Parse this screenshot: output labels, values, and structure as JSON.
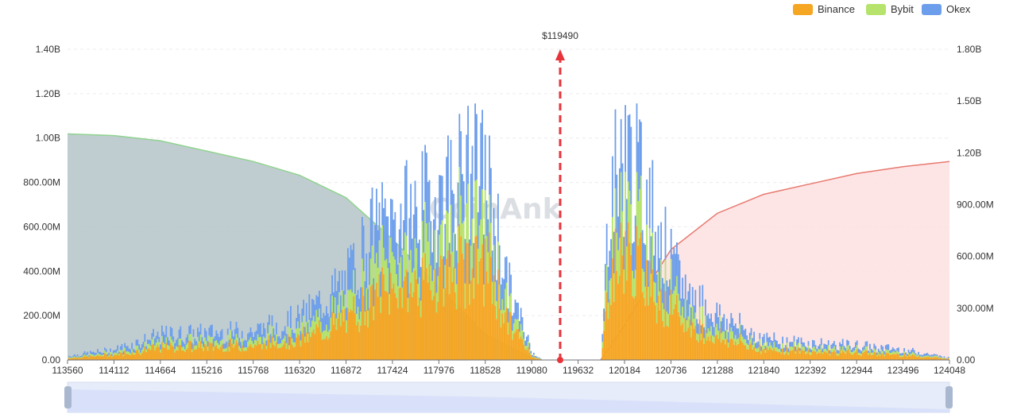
{
  "chart_data": {
    "type": "bar",
    "title": "",
    "current_price_label": "$119490",
    "current_price": 119490,
    "watermark": "CoinAnk",
    "x_ticks": [
      "113560",
      "114112",
      "114664",
      "115216",
      "115768",
      "116320",
      "116872",
      "117424",
      "117976",
      "118528",
      "119080",
      "119632",
      "120184",
      "120736",
      "121288",
      "121840",
      "122392",
      "122944",
      "123496",
      "124048"
    ],
    "xlim": [
      113560,
      124048
    ],
    "y_left_ticks": [
      "0.00",
      "200.00M",
      "400.00M",
      "600.00M",
      "800.00M",
      "1.00B",
      "1.20B",
      "1.40B"
    ],
    "y_left_lim": [
      0,
      1400000000
    ],
    "y_right_ticks": [
      "0.00",
      "300.00M",
      "600.00M",
      "900.00M",
      "1.20B",
      "1.50B",
      "1.80B"
    ],
    "y_right_lim": [
      0,
      1800000000
    ],
    "legend": {
      "position": "top-right"
    },
    "series": [
      {
        "name": "Binance",
        "color": "#f5a623"
      },
      {
        "name": "Bybit",
        "color": "#b5e36b"
      },
      {
        "name": "Okex",
        "color": "#6d9eeb"
      }
    ],
    "bar_profile": {
      "x": [
        113560,
        114112,
        114664,
        115216,
        115768,
        116320,
        116872,
        117150,
        117424,
        117700,
        117976,
        118250,
        118528,
        118800,
        119080,
        119200,
        119632,
        119900,
        120000,
        120184,
        120450,
        120736,
        121000,
        121288,
        121840,
        122392,
        122944,
        123496,
        124048
      ],
      "totals": [
        20000000,
        50000000,
        120000000,
        130000000,
        140000000,
        200000000,
        380000000,
        600000000,
        680000000,
        720000000,
        800000000,
        900000000,
        900000000,
        350000000,
        40000000,
        0,
        0,
        0,
        850000000,
        1000000000,
        800000000,
        450000000,
        300000000,
        220000000,
        100000000,
        80000000,
        70000000,
        50000000,
        10000000
      ],
      "binance_share": 0.5,
      "bybit_share": 0.2,
      "okex_share": 0.3
    },
    "cumulative_short": {
      "name": "cumulative-short-liquidation",
      "color": "#b5c4c8",
      "line_color": "#8fd38f",
      "x": [
        113560,
        114112,
        114664,
        115216,
        115768,
        116320,
        116872,
        117424,
        117976,
        118528,
        119080,
        119200
      ],
      "y": [
        1310000000,
        1300000000,
        1270000000,
        1210000000,
        1150000000,
        1070000000,
        940000000,
        700000000,
        420000000,
        150000000,
        10000000,
        0
      ]
    },
    "cumulative_long": {
      "name": "cumulative-long-liquidation",
      "color": "#fde0e0",
      "line_color": "#e8796f",
      "x": [
        119900,
        120184,
        120450,
        120736,
        121288,
        121840,
        122392,
        122944,
        123496,
        124048
      ],
      "y": [
        0,
        200000000,
        420000000,
        640000000,
        850000000,
        960000000,
        1020000000,
        1080000000,
        1120000000,
        1150000000
      ]
    }
  }
}
